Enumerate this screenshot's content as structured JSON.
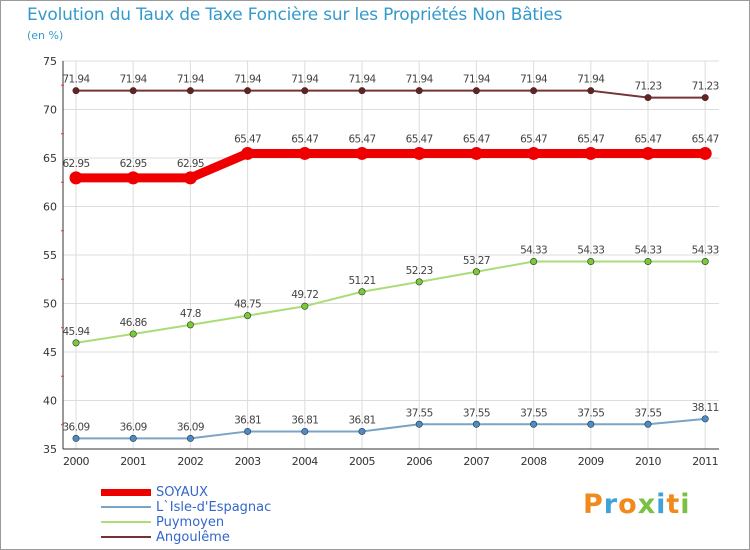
{
  "header": {
    "title": "Evolution du Taux de Taxe Foncière sur les Propriétés Non Bâties",
    "unit": "(en %)"
  },
  "chart_data": {
    "type": "line",
    "title": "Evolution du Taux de Taxe Foncière sur les Propriétés Non Bâties",
    "ylabel": "(en %)",
    "xlabel": "",
    "ylim": [
      35,
      75
    ],
    "yticks": [
      35,
      40,
      45,
      50,
      55,
      60,
      65,
      70,
      75
    ],
    "grid": true,
    "categories": [
      "2000",
      "2001",
      "2002",
      "2003",
      "2004",
      "2005",
      "2006",
      "2007",
      "2008",
      "2009",
      "2010",
      "2011"
    ],
    "series": [
      {
        "name": "SOYAUX",
        "color": "#ee0000",
        "point_color": "#ee0000",
        "emphasis": true,
        "values": [
          62.95,
          62.95,
          62.95,
          65.47,
          65.47,
          65.47,
          65.47,
          65.47,
          65.47,
          65.47,
          65.47,
          65.47
        ],
        "labels": [
          "62.95",
          "62.95",
          "62.95",
          "65.47",
          "65.47",
          "65.47",
          "65.47",
          "65.47",
          "65.47",
          "65.47",
          "65.47",
          "65.47"
        ]
      },
      {
        "name": "L`Isle-d'Espagnac",
        "color": "#7aa3c8",
        "point_color": "#4a8cc9",
        "values": [
          36.09,
          36.09,
          36.09,
          36.81,
          36.81,
          36.81,
          37.55,
          37.55,
          37.55,
          37.55,
          37.55,
          38.11
        ],
        "labels": [
          "36.09",
          "36.09",
          "36.09",
          "36.81",
          "36.81",
          "36.81",
          "37.55",
          "37.55",
          "37.55",
          "37.55",
          "37.55",
          "38.11"
        ]
      },
      {
        "name": "Puymoyen",
        "color": "#aadd77",
        "point_color": "#77cc33",
        "values": [
          45.94,
          46.86,
          47.8,
          48.75,
          49.72,
          51.21,
          52.23,
          53.27,
          54.33,
          54.33,
          54.33,
          54.33
        ],
        "labels": [
          "45.94",
          "46.86",
          "47.8",
          "48.75",
          "49.72",
          "51.21",
          "52.23",
          "53.27",
          "54.33",
          "54.33",
          "54.33",
          "54.33"
        ]
      },
      {
        "name": "Angoulême",
        "color": "#773333",
        "point_color": "#6b1f1f",
        "values": [
          71.94,
          71.94,
          71.94,
          71.94,
          71.94,
          71.94,
          71.94,
          71.94,
          71.94,
          71.94,
          71.23,
          71.23
        ],
        "labels": [
          "71.94",
          "71.94",
          "71.94",
          "71.94",
          "71.94",
          "71.94",
          "71.94",
          "71.94",
          "71.94",
          "71.94",
          "71.23",
          "71.23"
        ]
      }
    ]
  },
  "legend": {
    "items": [
      {
        "label": "SOYAUX",
        "color": "#ee0000"
      },
      {
        "label": "L`Isle-d'Espagnac",
        "color": "#7aa3c8"
      },
      {
        "label": "Puymoyen",
        "color": "#aadd77"
      },
      {
        "label": "Angoulême",
        "color": "#773333"
      }
    ]
  },
  "logo": {
    "letters": [
      "P",
      "r",
      "o",
      "x",
      "i",
      "t",
      "i"
    ],
    "colors": [
      "#f08a1c",
      "#3da3d9",
      "#f08a1c",
      "#7ac143",
      "#3da3d9",
      "#f08a1c",
      "#7ac143"
    ]
  }
}
